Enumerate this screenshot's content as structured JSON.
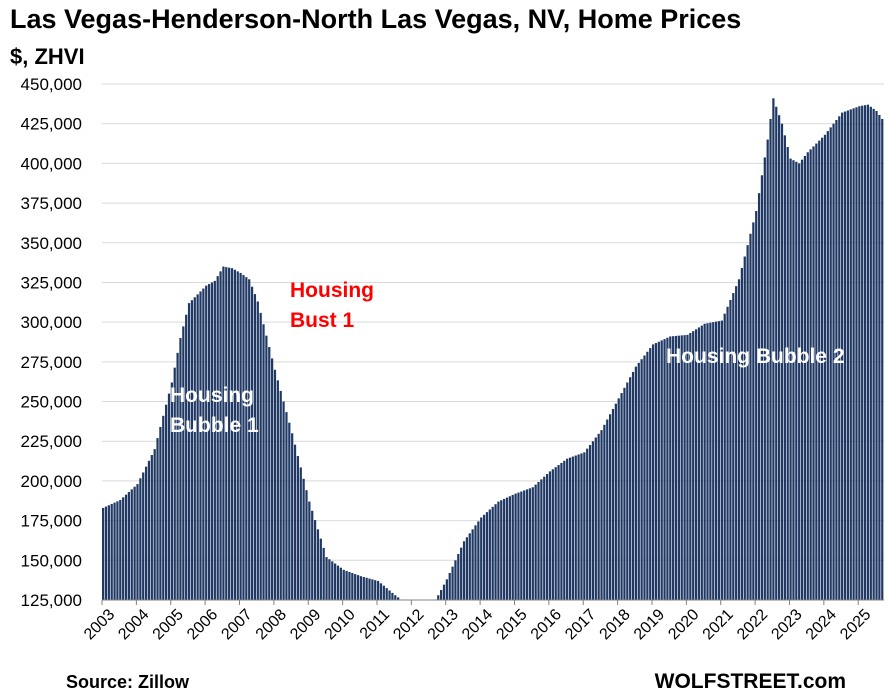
{
  "chart_data": {
    "type": "bar",
    "title": "Las Vegas-Henderson-North Las Vegas, NV, Home Prices",
    "subtitle": "$, ZHVI",
    "ylim": [
      125000,
      450000
    ],
    "y_ticks": [
      "125,000",
      "150,000",
      "175,000",
      "200,000",
      "225,000",
      "250,000",
      "275,000",
      "300,000",
      "325,000",
      "350,000",
      "375,000",
      "400,000",
      "425,000",
      "450,000"
    ],
    "x_ticks": [
      "2003",
      "2004",
      "2005",
      "2006",
      "2007",
      "2008",
      "2009",
      "2010",
      "2011",
      "2012",
      "2013",
      "2014",
      "2015",
      "2016",
      "2017",
      "2018",
      "2019",
      "2020",
      "2021",
      "2022",
      "2023",
      "2024",
      "2025"
    ],
    "grid": true,
    "frequency": "monthly",
    "start": "2003-01",
    "series_anchors": [
      [
        "2003-01",
        183000
      ],
      [
        "2003-07",
        188000
      ],
      [
        "2004-01",
        198000
      ],
      [
        "2004-07",
        220000
      ],
      [
        "2005-01",
        262000
      ],
      [
        "2005-04",
        290000
      ],
      [
        "2005-07",
        312000
      ],
      [
        "2006-01",
        323000
      ],
      [
        "2006-04",
        326000
      ],
      [
        "2006-07",
        335000
      ],
      [
        "2006-10",
        334000
      ],
      [
        "2007-01",
        331000
      ],
      [
        "2007-04",
        327000
      ],
      [
        "2007-07",
        313000
      ],
      [
        "2008-01",
        270000
      ],
      [
        "2008-07",
        230000
      ],
      [
        "2009-01",
        187000
      ],
      [
        "2009-07",
        152000
      ],
      [
        "2010-01",
        144000
      ],
      [
        "2010-07",
        140000
      ],
      [
        "2011-01",
        137000
      ],
      [
        "2011-07",
        128000
      ],
      [
        "2011-10",
        124000
      ],
      [
        "2012-07",
        120000
      ],
      [
        "2012-10",
        128000
      ],
      [
        "2013-01",
        138000
      ],
      [
        "2013-07",
        162000
      ],
      [
        "2014-01",
        177000
      ],
      [
        "2014-07",
        187000
      ],
      [
        "2015-01",
        192000
      ],
      [
        "2015-07",
        196000
      ],
      [
        "2016-01",
        206000
      ],
      [
        "2016-07",
        214000
      ],
      [
        "2017-01",
        218000
      ],
      [
        "2017-07",
        232000
      ],
      [
        "2018-01",
        252000
      ],
      [
        "2018-07",
        272000
      ],
      [
        "2019-01",
        286000
      ],
      [
        "2019-07",
        291000
      ],
      [
        "2020-01",
        292000
      ],
      [
        "2020-07",
        299000
      ],
      [
        "2021-01",
        301000
      ],
      [
        "2021-07",
        327000
      ],
      [
        "2022-01",
        370000
      ],
      [
        "2022-05",
        415000
      ],
      [
        "2022-07",
        441000
      ],
      [
        "2022-10",
        425000
      ],
      [
        "2023-01",
        403000
      ],
      [
        "2023-04",
        400000
      ],
      [
        "2023-07",
        407000
      ],
      [
        "2024-01",
        418000
      ],
      [
        "2024-07",
        432000
      ],
      [
        "2025-01",
        436000
      ],
      [
        "2025-04",
        437000
      ],
      [
        "2025-07",
        433000
      ],
      [
        "2025-09",
        428000
      ]
    ],
    "annotations": [
      {
        "text": "Housing\nBubble 1",
        "color": "#ffffff"
      },
      {
        "text": "Housing\nBust 1",
        "color": "#ff0000"
      },
      {
        "text": "Housing Bubble 2",
        "color": "#ffffff"
      }
    ],
    "bar_color": "#1f3864",
    "source": "Source: Zillow",
    "brand": "WOLFSTREET.com"
  }
}
